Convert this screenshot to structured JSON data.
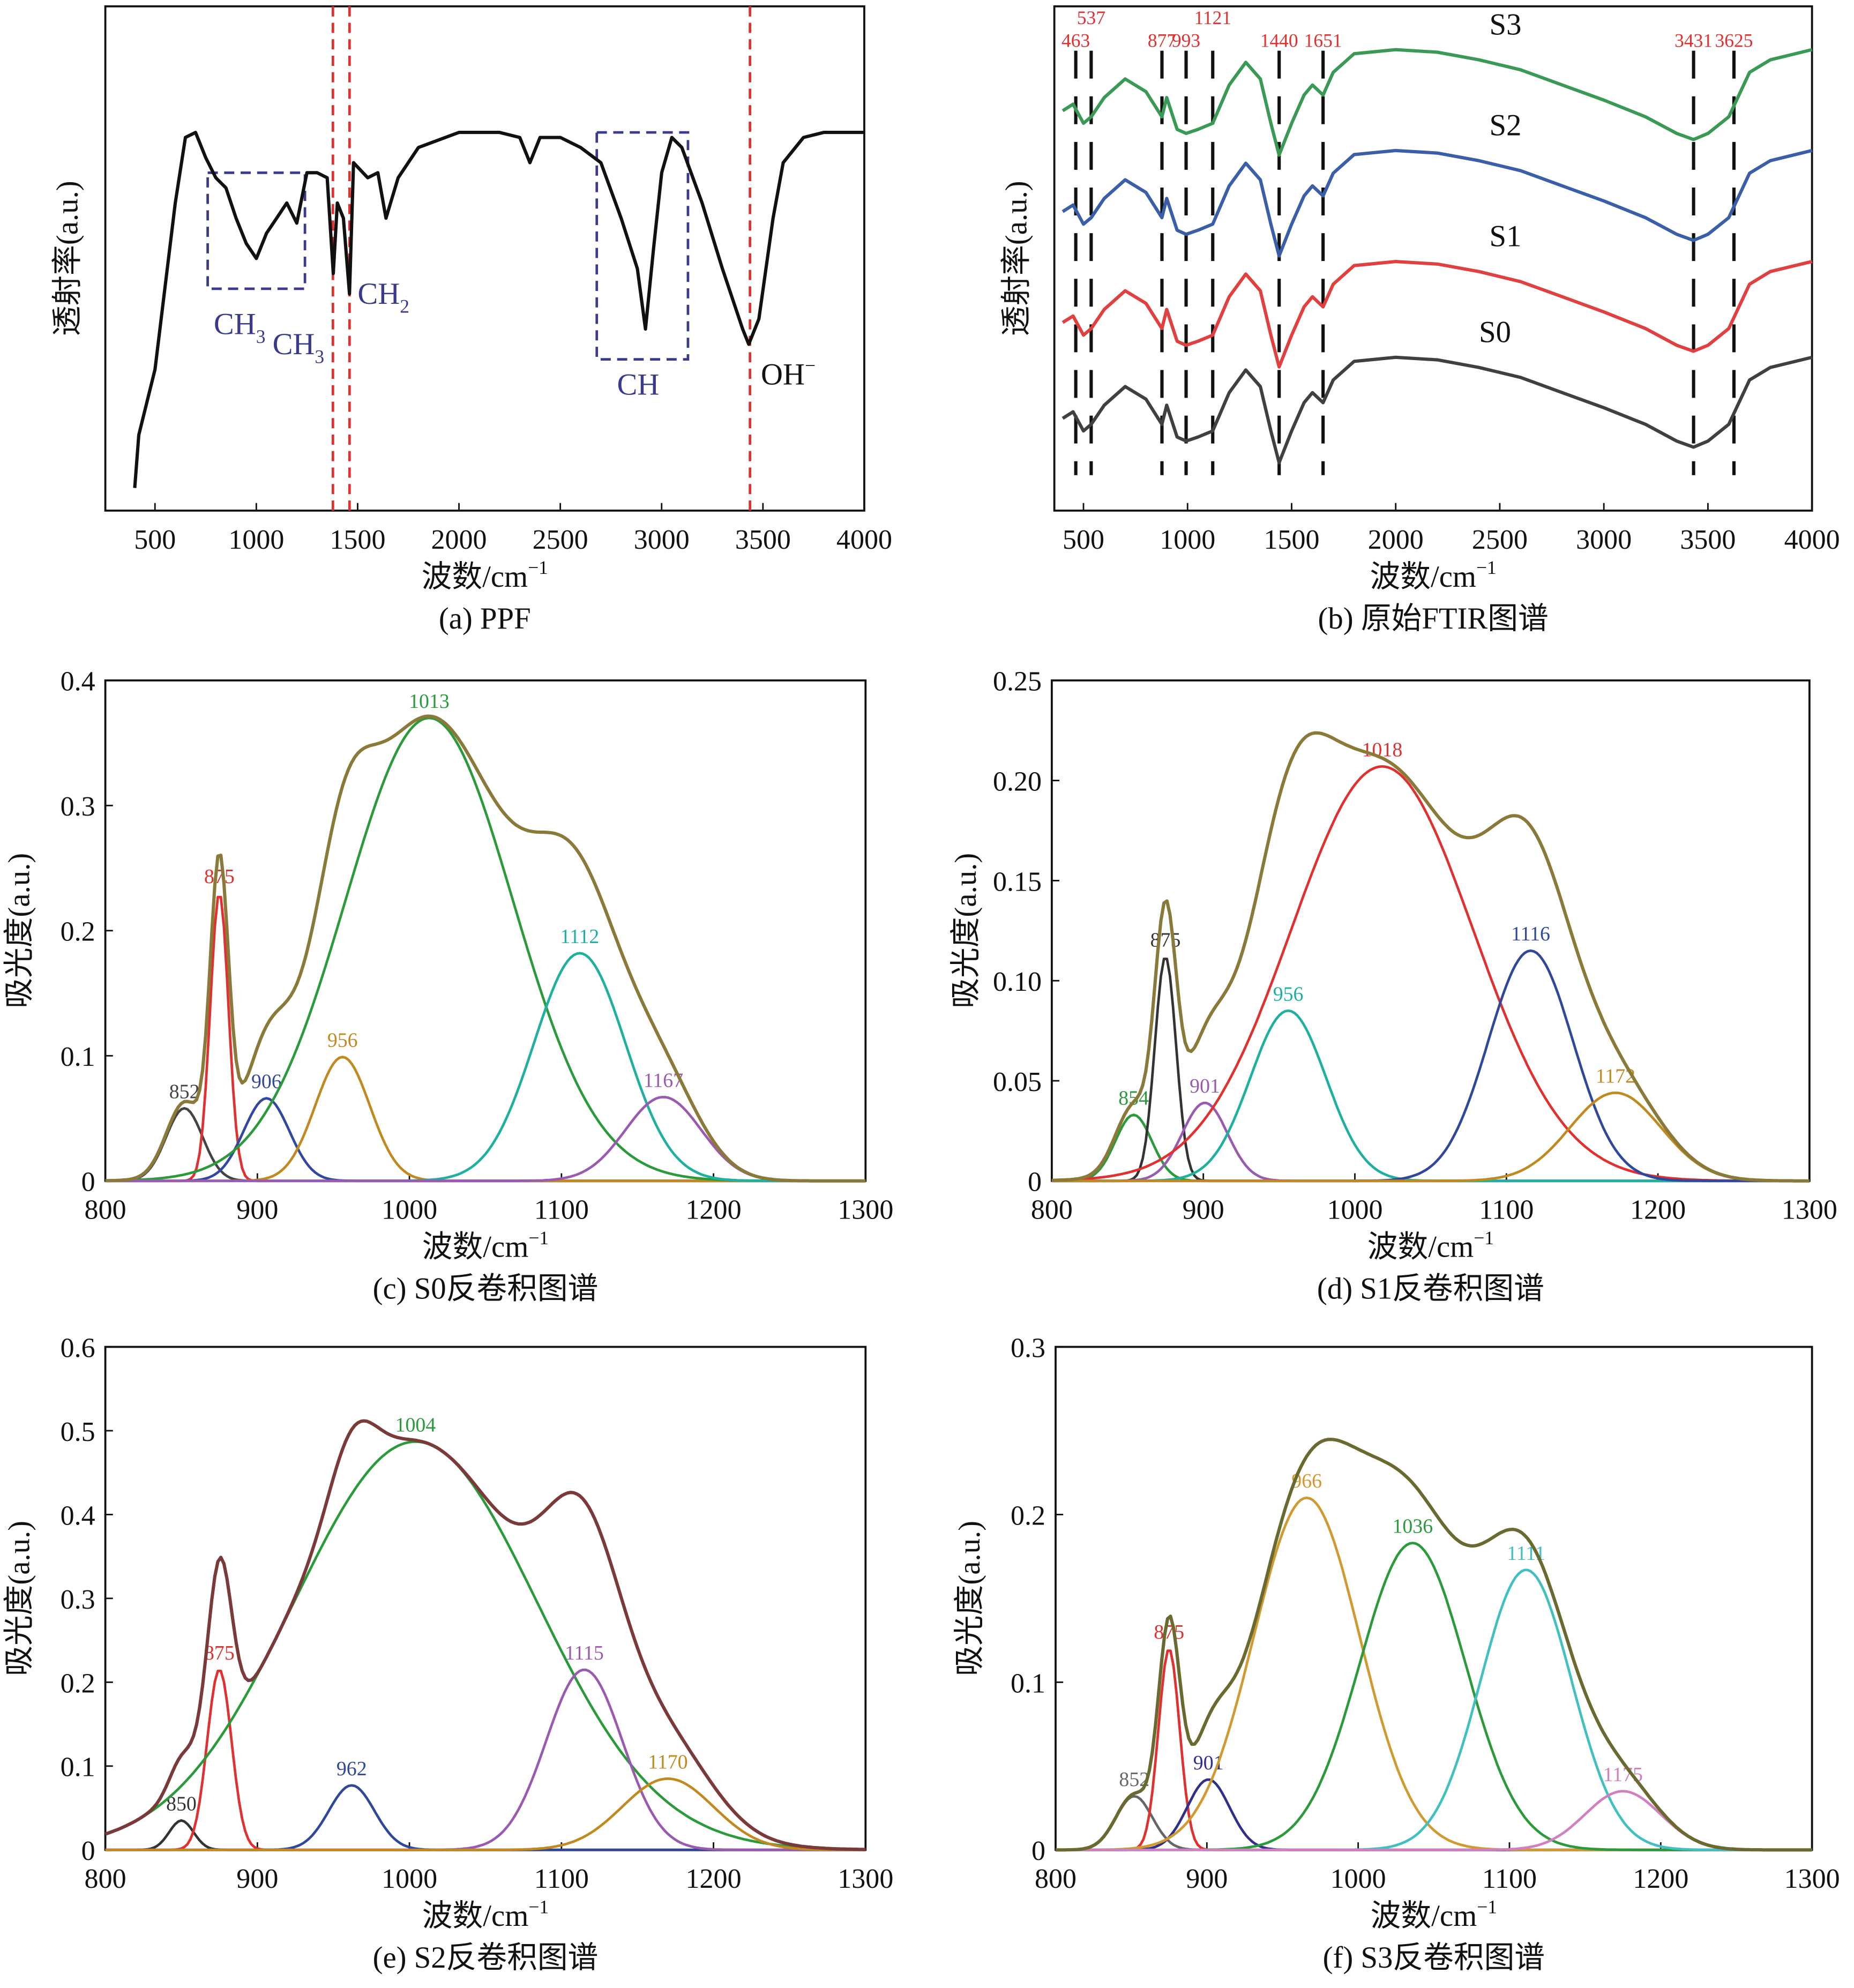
{
  "chart_data": [
    {
      "id": "a",
      "type": "line",
      "caption": "(a) PPF",
      "xlabel": "波数/cm",
      "xlabel_sup": "−1",
      "ylabel": "透射率(a.u.)",
      "xlim": [
        255,
        4000
      ],
      "ylim": [
        0,
        1
      ],
      "xticks": [
        500,
        1000,
        1500,
        2000,
        2500,
        3000,
        3500,
        4000
      ],
      "series": [
        {
          "color": "#111111",
          "x": [
            400,
            420,
            500,
            600,
            650,
            700,
            750,
            800,
            850,
            900,
            950,
            1000,
            1050,
            1100,
            1150,
            1200,
            1250,
            1300,
            1350,
            1380,
            1400,
            1430,
            1460,
            1480,
            1550,
            1600,
            1640,
            1700,
            1800,
            2000,
            2200,
            2300,
            2350,
            2400,
            2500,
            2600,
            2700,
            2800,
            2880,
            2920,
            2960,
            3000,
            3050,
            3100,
            3200,
            3300,
            3400,
            3430,
            3480,
            3550,
            3600,
            3700,
            3800,
            4000
          ],
          "y": [
            0.045,
            0.15,
            0.28,
            0.61,
            0.74,
            0.75,
            0.7,
            0.66,
            0.64,
            0.58,
            0.53,
            0.5,
            0.55,
            0.58,
            0.61,
            0.57,
            0.67,
            0.67,
            0.66,
            0.47,
            0.61,
            0.58,
            0.43,
            0.69,
            0.66,
            0.67,
            0.58,
            0.66,
            0.72,
            0.75,
            0.75,
            0.74,
            0.69,
            0.74,
            0.74,
            0.72,
            0.69,
            0.58,
            0.48,
            0.36,
            0.52,
            0.67,
            0.74,
            0.72,
            0.61,
            0.48,
            0.36,
            0.33,
            0.38,
            0.58,
            0.69,
            0.74,
            0.75,
            0.75
          ]
        }
      ],
      "vlines": {
        "color": "#e03030",
        "x": [
          1378,
          1460,
          3436
        ]
      },
      "boxes": [
        {
          "x": [
            760,
            1240
          ],
          "y": [
            0.44,
            0.67
          ]
        },
        {
          "x": [
            2680,
            3130
          ],
          "y": [
            0.3,
            0.75
          ]
        }
      ],
      "box_color": "#3a3a8c",
      "annotations": [
        {
          "text": "CH",
          "sub": "3",
          "x": 790,
          "y": 0.35,
          "color": "#3a3a8c"
        },
        {
          "text": "CH",
          "sub": "3",
          "x": 1080,
          "y": 0.31,
          "color": "#3a3a8c"
        },
        {
          "text": "CH",
          "sub": "2",
          "x": 1500,
          "y": 0.41,
          "color": "#3a3a8c"
        },
        {
          "text": "CH",
          "sub": "",
          "x": 2780,
          "y": 0.23,
          "color": "#3a3a8c"
        },
        {
          "text": "OH",
          "sup": "−",
          "x": 3490,
          "y": 0.25,
          "color": "#111111"
        }
      ]
    },
    {
      "id": "b",
      "type": "line",
      "caption": "(b) 原始FTIR图谱",
      "xlabel": "波数/cm",
      "xlabel_sup": "−1",
      "ylabel": "透射率(a.u.)",
      "xlim": [
        360,
        4000
      ],
      "ylim": [
        0,
        1
      ],
      "xticks": [
        500,
        1000,
        1500,
        2000,
        2500,
        3000,
        3500,
        4000
      ],
      "x": [
        400,
        450,
        500,
        537,
        600,
        700,
        800,
        877,
        900,
        950,
        993,
        1050,
        1121,
        1200,
        1280,
        1350,
        1400,
        1440,
        1500,
        1560,
        1600,
        1651,
        1700,
        1800,
        2000,
        2200,
        2400,
        2600,
        2800,
        3000,
        3200,
        3350,
        3431,
        3500,
        3600,
        3700,
        3800,
        4000
      ],
      "base_y": [
        0.183,
        0.196,
        0.158,
        0.171,
        0.209,
        0.246,
        0.221,
        0.171,
        0.209,
        0.146,
        0.138,
        0.146,
        0.158,
        0.234,
        0.279,
        0.246,
        0.158,
        0.095,
        0.158,
        0.214,
        0.234,
        0.214,
        0.259,
        0.296,
        0.304,
        0.299,
        0.284,
        0.264,
        0.234,
        0.204,
        0.171,
        0.138,
        0.126,
        0.138,
        0.171,
        0.259,
        0.284,
        0.304
      ],
      "series": [
        {
          "name": "S0",
          "offset": 0.0,
          "color": "#404040",
          "label_x": 2400
        },
        {
          "name": "S1",
          "offset": 0.19,
          "color": "#e04040",
          "label_x": 2450
        },
        {
          "name": "S2",
          "offset": 0.41,
          "color": "#3a5fa8",
          "label_x": 2450
        },
        {
          "name": "S3",
          "offset": 0.61,
          "color": "#3a9a55",
          "label_x": 2450
        }
      ],
      "vlines": {
        "color": "#111111",
        "x": [
          463,
          537,
          877,
          993,
          1121,
          1440,
          1651,
          3431,
          3625
        ],
        "labels": [
          "463",
          "537",
          "877",
          "993",
          "1121",
          "1440",
          "1651",
          "3431",
          "3625"
        ],
        "label_color": "#e03030"
      }
    },
    {
      "id": "c",
      "type": "line",
      "caption": "(c) S0反卷积图谱",
      "xlabel": "波数/cm",
      "xlabel_sup": "−1",
      "ylabel": "吸光度(a.u.)",
      "xlim": [
        800,
        1300
      ],
      "ylim": [
        0,
        0.4
      ],
      "xticks": [
        800,
        900,
        1000,
        1100,
        1200,
        1300
      ],
      "yticks": [
        "0",
        "0.1",
        "0.2",
        "0.3",
        "0.4"
      ],
      "fit_color": "#8a7a3a",
      "peaks": [
        {
          "label": "852",
          "center": 852,
          "height": 0.058,
          "sigma": 12,
          "color": "#444444"
        },
        {
          "label": "875",
          "center": 875,
          "height": 0.23,
          "sigma": 6,
          "color": "#e03030"
        },
        {
          "label": "906",
          "center": 906,
          "height": 0.066,
          "sigma": 15,
          "color": "#3048a0"
        },
        {
          "label": "956",
          "center": 956,
          "height": 0.099,
          "sigma": 18,
          "color": "#c08a20"
        },
        {
          "label": "1013",
          "center": 1013,
          "height": 0.37,
          "sigma": 55,
          "color": "#2a9a3a"
        },
        {
          "label": "1112",
          "center": 1112,
          "height": 0.182,
          "sigma": 30,
          "color": "#20b0a0"
        },
        {
          "label": "1167",
          "center": 1167,
          "height": 0.067,
          "sigma": 25,
          "color": "#9a5ab0"
        }
      ]
    },
    {
      "id": "d",
      "type": "line",
      "caption": "(d) S1反卷积图谱",
      "xlabel": "波数/cm",
      "xlabel_sup": "−1",
      "ylabel": "吸光度(a.u.)",
      "xlim": [
        800,
        1300
      ],
      "ylim": [
        0,
        0.25
      ],
      "xticks": [
        800,
        900,
        1000,
        1100,
        1200,
        1300
      ],
      "yticks": [
        "0",
        "0.05",
        "0.10",
        "0.15",
        "0.20",
        "0.25"
      ],
      "fit_color": "#8a7a3a",
      "peaks": [
        {
          "label": "854",
          "center": 854,
          "height": 0.033,
          "sigma": 12,
          "color": "#2a9a3a"
        },
        {
          "label": "875",
          "center": 875,
          "height": 0.112,
          "sigma": 7,
          "color": "#333333"
        },
        {
          "label": "901",
          "center": 901,
          "height": 0.039,
          "sigma": 15,
          "color": "#9a5ab0"
        },
        {
          "label": "956",
          "center": 956,
          "height": 0.085,
          "sigma": 25,
          "color": "#20b0a0"
        },
        {
          "label": "1018",
          "center": 1018,
          "height": 0.207,
          "sigma": 60,
          "color": "#e03030"
        },
        {
          "label": "1116",
          "center": 1116,
          "height": 0.115,
          "sigma": 28,
          "color": "#30489a"
        },
        {
          "label": "1172",
          "center": 1172,
          "height": 0.044,
          "sigma": 30,
          "color": "#c08a20"
        }
      ]
    },
    {
      "id": "e",
      "type": "line",
      "caption": "(e) S2反卷积图谱",
      "xlabel": "波数/cm",
      "xlabel_sup": "−1",
      "ylabel": "吸光度(a.u.)",
      "xlim": [
        800,
        1300
      ],
      "ylim": [
        0,
        0.6
      ],
      "xticks": [
        800,
        900,
        1000,
        1100,
        1200,
        1300
      ],
      "yticks": [
        "0",
        "0.1",
        "0.2",
        "0.3",
        "0.4",
        "0.5",
        "0.6"
      ],
      "fit_color": "#7a3a3a",
      "peaks": [
        {
          "label": "850",
          "center": 850,
          "height": 0.035,
          "sigma": 8,
          "color": "#333333"
        },
        {
          "label": "875",
          "center": 875,
          "height": 0.215,
          "sigma": 8,
          "color": "#e03030"
        },
        {
          "label": "962",
          "center": 962,
          "height": 0.077,
          "sigma": 15,
          "color": "#30489a"
        },
        {
          "label": "1004",
          "center": 1004,
          "height": 0.487,
          "sigma": 80,
          "color": "#2a9a3a"
        },
        {
          "label": "1115",
          "center": 1115,
          "height": 0.215,
          "sigma": 25,
          "color": "#9a5ab0"
        },
        {
          "label": "1170",
          "center": 1170,
          "height": 0.085,
          "sigma": 30,
          "color": "#c08a20"
        }
      ]
    },
    {
      "id": "f",
      "type": "line",
      "caption": "(f) S3反卷积图谱",
      "xlabel": "波数/cm",
      "xlabel_sup": "−1",
      "ylabel": "吸光度(a.u.)",
      "xlim": [
        800,
        1300
      ],
      "ylim": [
        0,
        0.3
      ],
      "xticks": [
        800,
        900,
        1000,
        1100,
        1200,
        1300
      ],
      "yticks": [
        "0",
        "0.1",
        "0.2",
        "0.3"
      ],
      "fit_color": "#6a6a30",
      "peaks": [
        {
          "label": "852",
          "center": 852,
          "height": 0.032,
          "sigma": 12,
          "color": "#666666"
        },
        {
          "label": "875",
          "center": 875,
          "height": 0.12,
          "sigma": 7,
          "color": "#e03030"
        },
        {
          "label": "901",
          "center": 901,
          "height": 0.042,
          "sigma": 14,
          "color": "#30308a"
        },
        {
          "label": "966",
          "center": 966,
          "height": 0.21,
          "sigma": 35,
          "color": "#d09a30"
        },
        {
          "label": "1036",
          "center": 1036,
          "height": 0.183,
          "sigma": 35,
          "color": "#2a9a3a"
        },
        {
          "label": "1111",
          "center": 1111,
          "height": 0.167,
          "sigma": 30,
          "color": "#40c0c0"
        },
        {
          "label": "1175",
          "center": 1175,
          "height": 0.035,
          "sigma": 25,
          "color": "#d080c0"
        }
      ]
    }
  ]
}
